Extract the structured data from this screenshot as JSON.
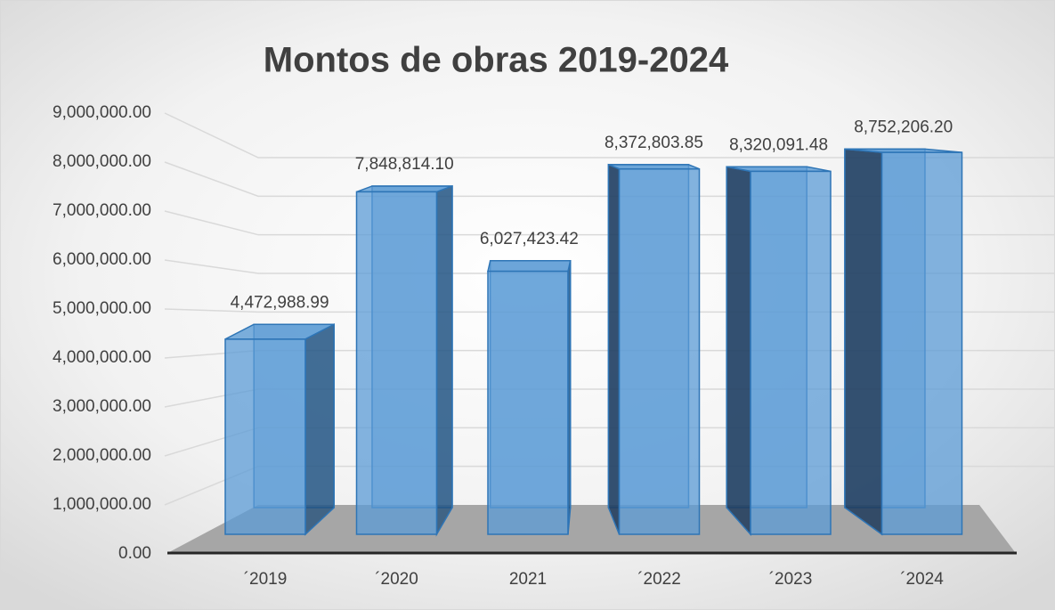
{
  "chart_data": {
    "type": "bar3d",
    "title": "Montos de obras 2019-2024",
    "categories": [
      "´2019",
      "´2020",
      "2021",
      "´2022",
      "´2023",
      "´2024"
    ],
    "values": [
      4472988.99,
      7848814.1,
      6027423.42,
      8372803.85,
      8320091.48,
      8752206.2
    ],
    "value_labels": [
      "4,472,988.99",
      "7,848,814.10",
      "6,027,423.42",
      "8,372,803.85",
      "8,320,091.48",
      "8,752,206.20"
    ],
    "color": "#5b9bd5",
    "ylim": [
      0,
      9000000
    ],
    "yticks": [
      {
        "value": 0,
        "label": "0.00"
      },
      {
        "value": 1000000,
        "label": "1,000,000.00"
      },
      {
        "value": 2000000,
        "label": "2,000,000.00"
      },
      {
        "value": 3000000,
        "label": "3,000,000.00"
      },
      {
        "value": 4000000,
        "label": "4,000,000.00"
      },
      {
        "value": 5000000,
        "label": "5,000,000.00"
      },
      {
        "value": 6000000,
        "label": "6,000,000.00"
      },
      {
        "value": 7000000,
        "label": "7,000,000.00"
      },
      {
        "value": 8000000,
        "label": "8,000,000.00"
      },
      {
        "value": 9000000,
        "label": "9,000,000.00"
      }
    ],
    "grid": true
  }
}
